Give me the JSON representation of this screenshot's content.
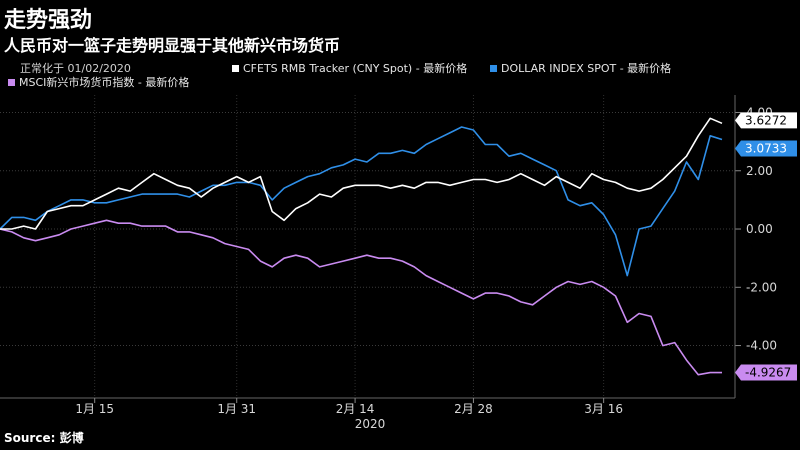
{
  "header": {
    "title": "走势强劲",
    "subtitle": "人民币对一篮子走势明显强于其他新兴市场货币",
    "norm_note": "正常化于 01/02/2020"
  },
  "source": "Source: 彭博",
  "chart_data": {
    "type": "line",
    "x_ticks": [
      "1月 15",
      "1月 31",
      "2月 14",
      "2月 28",
      "3月 16"
    ],
    "x_year": "2020",
    "y_ticks": [
      "4.00",
      "2.00",
      "0.00",
      "-2.00",
      "-4.00"
    ],
    "ylim": [
      -5.8,
      4.6
    ],
    "y_axis_side": "right",
    "grid": true,
    "series": [
      {
        "name": "CFETS RMB Tracker (CNY Spot) - 最新价格",
        "color": "#ffffff",
        "end_label": "3.6272",
        "end_value": 3.6272,
        "values": [
          0.0,
          0.0,
          0.1,
          0.0,
          0.6,
          0.7,
          0.8,
          0.8,
          1.0,
          1.2,
          1.4,
          1.3,
          1.6,
          1.9,
          1.7,
          1.5,
          1.4,
          1.1,
          1.4,
          1.6,
          1.8,
          1.6,
          1.8,
          0.6,
          0.3,
          0.7,
          0.9,
          1.2,
          1.1,
          1.4,
          1.5,
          1.5,
          1.5,
          1.4,
          1.5,
          1.4,
          1.6,
          1.6,
          1.5,
          1.6,
          1.7,
          1.7,
          1.6,
          1.7,
          1.9,
          1.7,
          1.5,
          1.8,
          1.6,
          1.4,
          1.9,
          1.7,
          1.6,
          1.4,
          1.3,
          1.4,
          1.7,
          2.1,
          2.5,
          3.2,
          3.8,
          3.6272
        ]
      },
      {
        "name": "DOLLAR INDEX SPOT - 最新价格",
        "color": "#2f8fe8",
        "end_label": "3.0733",
        "end_value": 3.0733,
        "values": [
          0.0,
          0.4,
          0.4,
          0.3,
          0.6,
          0.8,
          1.0,
          1.0,
          0.9,
          0.9,
          1.0,
          1.1,
          1.2,
          1.2,
          1.2,
          1.2,
          1.1,
          1.3,
          1.5,
          1.5,
          1.6,
          1.6,
          1.5,
          1.0,
          1.4,
          1.6,
          1.8,
          1.9,
          2.1,
          2.2,
          2.4,
          2.3,
          2.6,
          2.6,
          2.7,
          2.6,
          2.9,
          3.1,
          3.3,
          3.5,
          3.4,
          2.9,
          2.9,
          2.5,
          2.6,
          2.4,
          2.2,
          2.0,
          1.0,
          0.8,
          0.9,
          0.5,
          -0.2,
          -1.6,
          0.0,
          0.1,
          0.7,
          1.3,
          2.3,
          1.7,
          3.2,
          3.0733
        ]
      },
      {
        "name": "MSCI新兴市场货币指数 - 最新价格",
        "color": "#c98bf0",
        "end_label": "-4.9267",
        "end_value": -4.9267,
        "values": [
          0.0,
          -0.1,
          -0.3,
          -0.4,
          -0.3,
          -0.2,
          0.0,
          0.1,
          0.2,
          0.3,
          0.2,
          0.2,
          0.1,
          0.1,
          0.1,
          -0.1,
          -0.1,
          -0.2,
          -0.3,
          -0.5,
          -0.6,
          -0.7,
          -1.1,
          -1.3,
          -1.0,
          -0.9,
          -1.0,
          -1.3,
          -1.2,
          -1.1,
          -1.0,
          -0.9,
          -1.0,
          -1.0,
          -1.1,
          -1.3,
          -1.6,
          -1.8,
          -2.0,
          -2.2,
          -2.4,
          -2.2,
          -2.2,
          -2.3,
          -2.5,
          -2.6,
          -2.3,
          -2.0,
          -1.8,
          -1.9,
          -1.8,
          -2.0,
          -2.3,
          -3.2,
          -2.9,
          -3.0,
          -4.0,
          -3.9,
          -4.5,
          -5.0,
          -4.9267,
          -4.9267
        ]
      }
    ]
  }
}
